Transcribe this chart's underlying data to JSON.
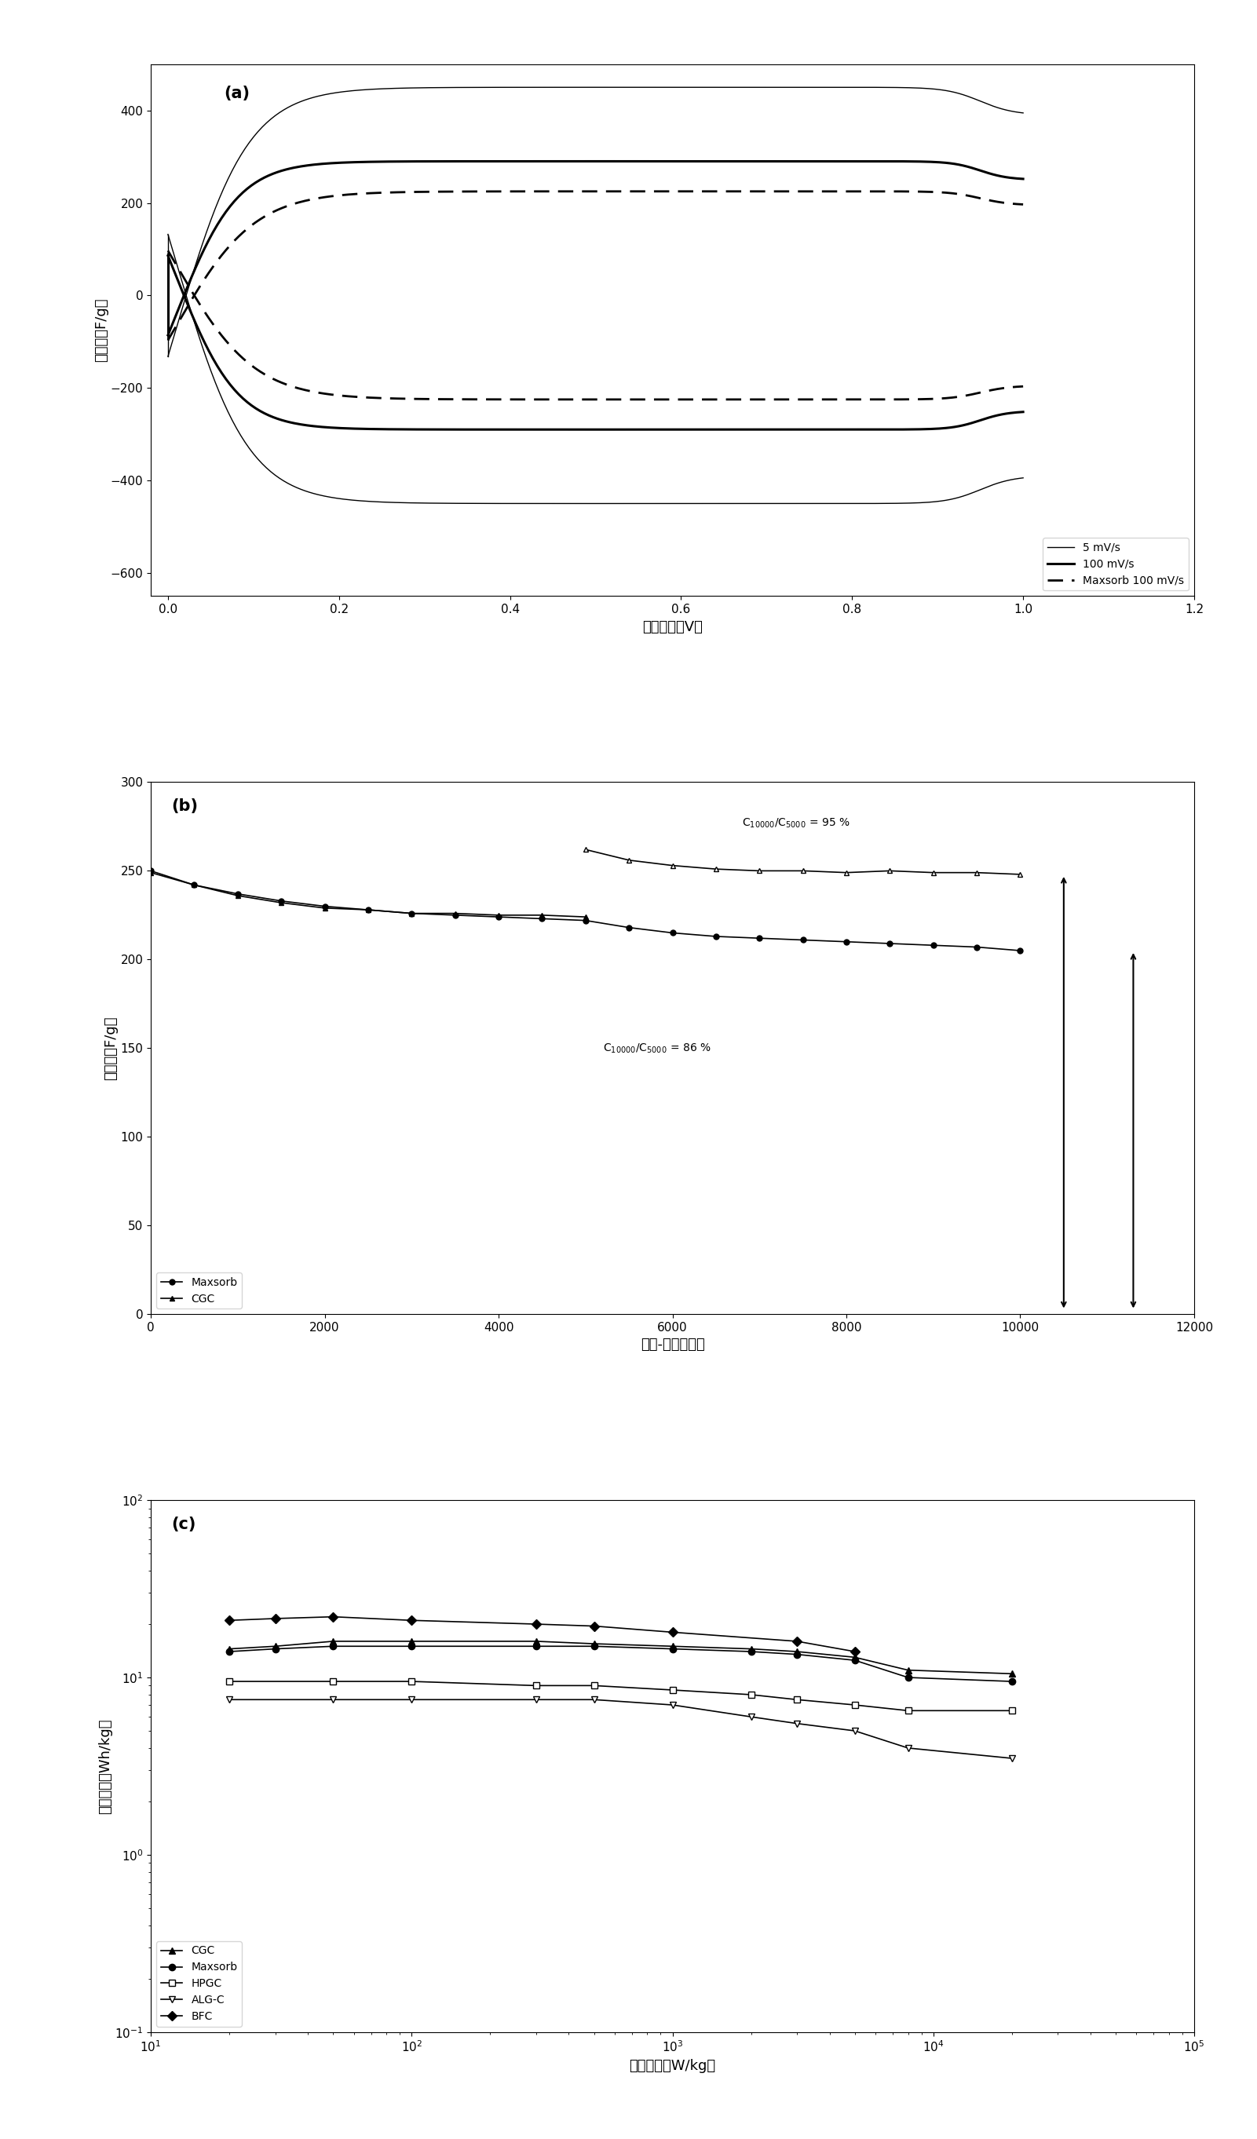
{
  "panel_a": {
    "label": "(a)",
    "xlabel": "电池电压（V）",
    "ylabel": "比电容（F/g）",
    "xlim": [
      -0.02,
      1.2
    ],
    "ylim": [
      -650,
      500
    ],
    "yticks": [
      -600,
      -400,
      -200,
      0,
      200,
      400
    ],
    "xticks": [
      0.0,
      0.2,
      0.4,
      0.6,
      0.8,
      1.0,
      1.2
    ]
  },
  "panel_b": {
    "label": "(b)",
    "xlabel": "充电-放电循环数",
    "ylabel": "比电容（F/g）",
    "xlim": [
      0,
      12000
    ],
    "ylim": [
      0,
      300
    ],
    "yticks": [
      0,
      50,
      100,
      150,
      200,
      250,
      300
    ],
    "xticks": [
      0,
      2000,
      4000,
      6000,
      8000,
      10000,
      12000
    ],
    "maxsorb_x": [
      0,
      500,
      1000,
      1500,
      2000,
      2500,
      3000,
      3500,
      4000,
      4500,
      5000,
      5500,
      6000,
      6500,
      7000,
      7500,
      8000,
      8500,
      9000,
      9500,
      10000
    ],
    "maxsorb_y": [
      250,
      242,
      237,
      233,
      230,
      228,
      226,
      225,
      224,
      223,
      222,
      218,
      215,
      213,
      212,
      211,
      210,
      209,
      208,
      207,
      205
    ],
    "cgc_phase1_x": [
      0,
      500,
      1000,
      1500,
      2000,
      2500,
      3000,
      3500,
      4000,
      4500,
      5000
    ],
    "cgc_phase1_y": [
      249,
      242,
      236,
      232,
      229,
      228,
      226,
      226,
      225,
      225,
      224
    ],
    "cgc_phase2_x": [
      5000,
      5500,
      6000,
      6500,
      7000,
      7500,
      8000,
      8500,
      9000,
      9500,
      10000
    ],
    "cgc_phase2_y": [
      262,
      256,
      253,
      251,
      250,
      250,
      249,
      250,
      249,
      249,
      248
    ],
    "ann1_x": 6800,
    "ann1_y": 275,
    "ann2_x": 5200,
    "ann2_y": 148,
    "arr1_x": 10500,
    "arr1_ytop": 248,
    "arr1_ybot": 2,
    "arr2_x": 11300,
    "arr2_ytop": 205,
    "arr2_ybot": 2
  },
  "panel_c": {
    "label": "(c)",
    "xlabel": "功率密度（W/kg）",
    "ylabel": "能量密度（Wh/kg）",
    "xlim_log": [
      10,
      100000
    ],
    "ylim_log": [
      0.1,
      100
    ],
    "cgc_x": [
      20,
      30,
      50,
      100,
      300,
      500,
      1000,
      2000,
      3000,
      5000,
      8000,
      20000
    ],
    "cgc_y": [
      14.5,
      15,
      16,
      16,
      16,
      15.5,
      15,
      14.5,
      14,
      13,
      11,
      10.5
    ],
    "maxsorb_x": [
      20,
      30,
      50,
      100,
      300,
      500,
      1000,
      2000,
      3000,
      5000,
      8000,
      20000
    ],
    "maxsorb_y": [
      14,
      14.5,
      15,
      15,
      15,
      15,
      14.5,
      14,
      13.5,
      12.5,
      10,
      9.5
    ],
    "hpgc_x": [
      20,
      50,
      100,
      300,
      500,
      1000,
      2000,
      3000,
      5000,
      8000,
      20000
    ],
    "hpgc_y": [
      9.5,
      9.5,
      9.5,
      9,
      9,
      8.5,
      8,
      7.5,
      7,
      6.5,
      6.5
    ],
    "algc_x": [
      20,
      50,
      100,
      300,
      500,
      1000,
      2000,
      3000,
      5000,
      8000,
      20000
    ],
    "algc_y": [
      7.5,
      7.5,
      7.5,
      7.5,
      7.5,
      7,
      6,
      5.5,
      5,
      4,
      3.5
    ],
    "bfc_x": [
      20,
      30,
      50,
      100,
      300,
      500,
      1000,
      3000,
      5000
    ],
    "bfc_y": [
      21,
      21.5,
      22,
      21,
      20,
      19.5,
      18,
      16,
      14
    ]
  }
}
